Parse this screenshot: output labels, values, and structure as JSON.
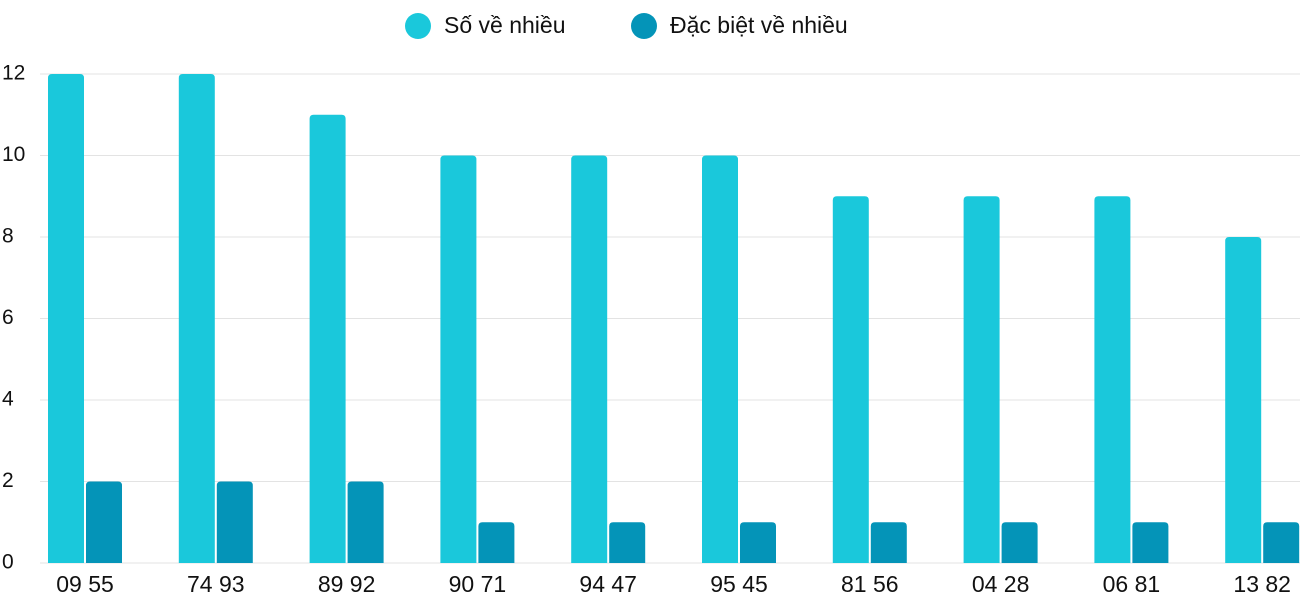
{
  "chart_data": {
    "type": "bar",
    "categories": [
      "09 55",
      "74 93",
      "89 92",
      "90 71",
      "94 47",
      "95 45",
      "81 56",
      "04 28",
      "06 81",
      "13 82"
    ],
    "series": [
      {
        "name": "Số về nhiều",
        "color": "#1ac8db",
        "values": [
          12,
          12,
          11,
          10,
          10,
          10,
          9,
          9,
          9,
          8
        ]
      },
      {
        "name": "Đặc biệt về nhiều",
        "color": "#0494b8",
        "values": [
          2,
          2,
          2,
          1,
          1,
          1,
          1,
          1,
          1,
          1
        ]
      }
    ],
    "ylim": [
      0,
      12
    ],
    "yticks": [
      0,
      2,
      4,
      6,
      8,
      10,
      12
    ],
    "grid": true,
    "legend": "top"
  }
}
